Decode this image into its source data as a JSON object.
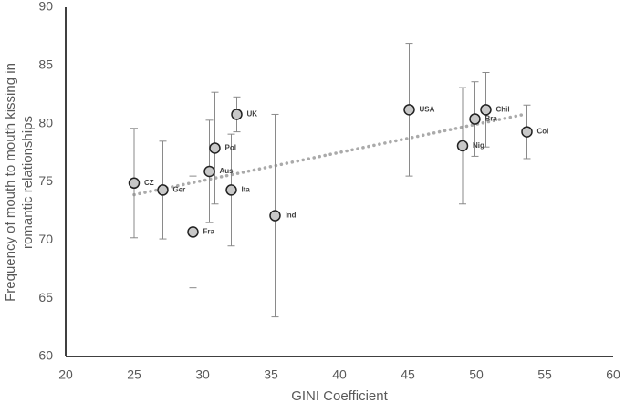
{
  "chart_data": {
    "type": "scatter",
    "xlabel": "GINI Coefficient",
    "ylabel": [
      "Frequency of mouth to mouth kissing in",
      "romantic relationships"
    ],
    "xlim": [
      20,
      60
    ],
    "xticks": [
      20,
      25,
      30,
      35,
      40,
      45,
      50,
      55,
      60
    ],
    "ylim": [
      60,
      90
    ],
    "yticks": [
      60,
      65,
      70,
      75,
      80,
      85,
      90
    ],
    "grid": false,
    "marker_color": "#c8c8c8",
    "error_color": "#8a8a8a",
    "trend_color": "#aaaaaa",
    "labels": [
      "CZ",
      "Ger",
      "Fra",
      "Aus",
      "Pol",
      "Ita",
      "UK",
      "Ind",
      "USA",
      "Nig",
      "Bra",
      "Chil",
      "Col"
    ],
    "x": [
      25,
      27.1,
      29.3,
      30.5,
      30.9,
      32.1,
      32.5,
      35.3,
      45.1,
      49,
      49.9,
      50.7,
      53.7
    ],
    "y": [
      74.9,
      74.3,
      70.7,
      75.9,
      77.9,
      74.3,
      80.8,
      72.1,
      81.2,
      78.1,
      80.4,
      81.2,
      79.3
    ],
    "err": [
      4.7,
      4.2,
      4.8,
      4.4,
      4.8,
      4.8,
      1.5,
      8.7,
      5.7,
      5,
      3.2,
      3.2,
      2.3
    ],
    "trend": {
      "x": [
        25,
        53.5
      ],
      "y": [
        73.9,
        80.8
      ]
    }
  }
}
